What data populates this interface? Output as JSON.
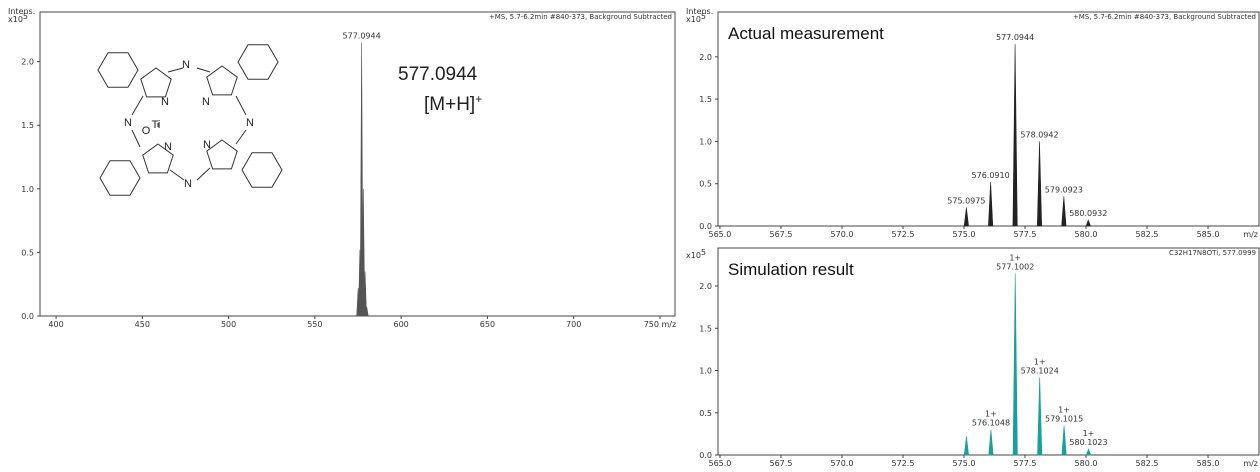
{
  "chart_data": [
    {
      "type": "spectrum",
      "y_label": "Intens.",
      "y_scale": "x10",
      "y_scale_exp": "5",
      "note": "+MS, 5.7-6.2min #840-373, Background Subtracted",
      "annotation": "577.0944",
      "annotation_ion": "[M+H]",
      "annotation_charge": "+",
      "color": "#555555",
      "x": [
        575.0975,
        576.091,
        577.0944,
        578.0942,
        579.0923,
        580.0932
      ],
      "values": [
        0.22,
        0.52,
        2.15,
        1.0,
        0.35,
        0.07
      ],
      "value_labels": [
        null,
        null,
        "577.0944",
        null,
        null,
        null
      ],
      "xlim": [
        390.7,
        759.3
      ],
      "xticks": [
        400,
        450,
        500,
        550,
        600,
        650,
        700,
        {
          "value": 750,
          "label": "750 m/z"
        }
      ],
      "ylim": [
        0,
        2.39
      ],
      "yticks": [
        {
          "value": 0,
          "label": "0.0"
        },
        {
          "value": 0.5,
          "label": "0.5"
        },
        {
          "value": 1,
          "label": "1.0"
        },
        {
          "value": 1.5,
          "label": "1.5"
        },
        {
          "value": 2,
          "label": "2.0"
        }
      ]
    },
    {
      "type": "spectrum",
      "title": "Actual measurement",
      "y_label": "Intens.",
      "y_scale": "x10",
      "y_scale_exp": "5",
      "note": "+MS, 5.7-6.2min #840-373, Background Subtracted",
      "x_label": "m/z",
      "color": "#222222",
      "x": [
        575.0975,
        576.091,
        577.0944,
        578.0942,
        579.0923,
        580.0932
      ],
      "values": [
        0.22,
        0.52,
        2.15,
        1.0,
        0.35,
        0.07
      ],
      "value_labels": [
        "575.0975",
        "576.0910",
        "577.0944",
        "578.0942",
        "579.0923",
        "580.0932"
      ],
      "xlim": [
        564.92,
        587.13
      ],
      "xticks": [
        {
          "value": 565,
          "label": "565.0"
        },
        567.5,
        {
          "value": 570,
          "label": "570.0"
        },
        572.5,
        {
          "value": 575,
          "label": "575.0"
        },
        577.5,
        {
          "value": 580,
          "label": "580.0"
        },
        582.5,
        {
          "value": 585,
          "label": "585.0"
        }
      ],
      "ylim": [
        0,
        2.53
      ],
      "yticks": [
        {
          "value": 0,
          "label": "0.0"
        },
        {
          "value": 0.5,
          "label": "0.5"
        },
        {
          "value": 1,
          "label": "1.0"
        },
        {
          "value": 1.5,
          "label": "1.5"
        },
        {
          "value": 2,
          "label": "2.0"
        }
      ]
    },
    {
      "type": "spectrum",
      "title": "Simulation result",
      "y_scale": "x10",
      "y_scale_exp": "5",
      "note": "C32H17N8OTi, 577.0999",
      "x_label": "m/z",
      "color": "#1a9e9e",
      "x": [
        575.1,
        576.1048,
        577.1002,
        578.1024,
        579.1015,
        580.1023
      ],
      "values": [
        0.22,
        0.3,
        2.15,
        0.92,
        0.35,
        0.07
      ],
      "value_labels": [
        null,
        "576.1048",
        "577.1002",
        "578.1024",
        "579.1015",
        "580.1023"
      ],
      "charge_labels": [
        null,
        "1+",
        "1+",
        "1+",
        "1+",
        "1+"
      ],
      "xlim": [
        564.92,
        587.13
      ],
      "xticks": [
        {
          "value": 565,
          "label": "565.0"
        },
        567.5,
        {
          "value": 570,
          "label": "570.0"
        },
        572.5,
        {
          "value": 575,
          "label": "575.0"
        },
        577.5,
        {
          "value": 580,
          "label": "580.0"
        },
        582.5,
        {
          "value": 585,
          "label": "585.0"
        }
      ],
      "ylim": [
        0,
        2.45
      ],
      "yticks": [
        {
          "value": 0,
          "label": "0.0"
        },
        {
          "value": 0.5,
          "label": "0.5"
        },
        {
          "value": 1,
          "label": "1.0"
        },
        {
          "value": 1.5,
          "label": "1.5"
        },
        {
          "value": 2,
          "label": "2.0"
        }
      ]
    }
  ],
  "structure": {
    "labels": [
      "N",
      "N",
      "N",
      "N",
      "N",
      "N",
      "N",
      "N",
      "O",
      "Ti"
    ]
  }
}
